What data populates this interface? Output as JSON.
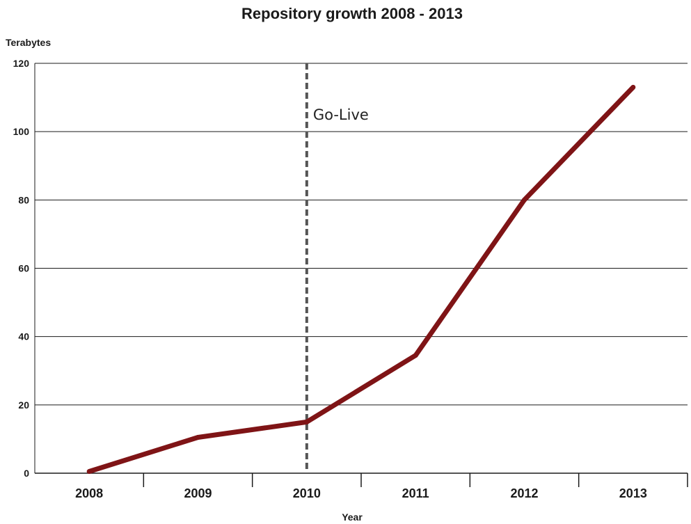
{
  "chart_data": {
    "type": "line",
    "title": "Repository growth 2008 - 2013",
    "ylabel": "Terabytes",
    "xlabel": "Year",
    "categories": [
      "2008",
      "2009",
      "2010",
      "2011",
      "2012",
      "2013"
    ],
    "series": [
      {
        "values": [
          0.5,
          10.5,
          15,
          34.5,
          80,
          113
        ]
      }
    ],
    "ylim": [
      0,
      120
    ],
    "yticks": [
      0,
      20,
      40,
      60,
      80,
      100,
      120
    ],
    "grid": "horizontal",
    "annotation": {
      "text": "Go-Live",
      "at": "2010"
    },
    "colors": {
      "line": "#7f1416",
      "marker_line": "#555555",
      "grid": "#1a1a1a"
    }
  }
}
